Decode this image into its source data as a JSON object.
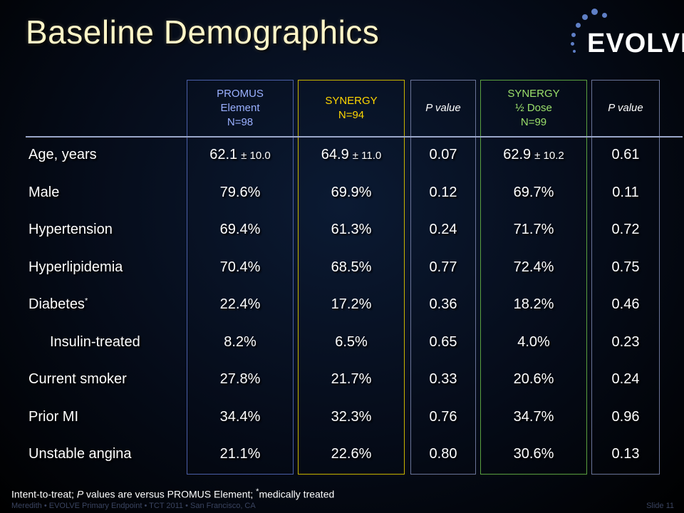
{
  "title": "Baseline Demographics",
  "logo": {
    "text": "EVOLVE"
  },
  "columns": [
    {
      "lines": [
        "PROMUS",
        "Element",
        "N=98"
      ],
      "color": "#9ab0ff"
    },
    {
      "lines": [
        "SYNERGY",
        "N=94"
      ],
      "color": "#ffd700"
    },
    {
      "lines": [
        "P value"
      ],
      "color": "#ffffff"
    },
    {
      "lines": [
        "SYNERGY",
        "½ Dose",
        "N=99"
      ],
      "color": "#9be06b"
    },
    {
      "lines": [
        "P value"
      ],
      "color": "#ffffff"
    }
  ],
  "rows": [
    {
      "label": "Age, years",
      "values": [
        "62.1",
        "64.9",
        "0.07",
        "62.9",
        "0.61"
      ],
      "sd": [
        "± 10.0",
        "± 11.0",
        "",
        "± 10.2",
        ""
      ]
    },
    {
      "label": "Male",
      "values": [
        "79.6%",
        "69.9%",
        "0.12",
        "69.7%",
        "0.11"
      ]
    },
    {
      "label": "Hypertension",
      "values": [
        "69.4%",
        "61.3%",
        "0.24",
        "71.7%",
        "0.72"
      ]
    },
    {
      "label": "Hyperlipidemia",
      "values": [
        "70.4%",
        "68.5%",
        "0.77",
        "72.4%",
        "0.75"
      ]
    },
    {
      "label": "Diabetes",
      "superscript": "*",
      "values": [
        "22.4%",
        "17.2%",
        "0.36",
        "18.2%",
        "0.46"
      ]
    },
    {
      "label": "Insulin-treated",
      "values": [
        "8.2%",
        "6.5%",
        "0.65",
        "4.0%",
        "0.23"
      ]
    },
    {
      "label": "Current smoker",
      "values": [
        "27.8%",
        "21.7%",
        "0.33",
        "20.6%",
        "0.24"
      ]
    },
    {
      "label": "Prior MI",
      "values": [
        "34.4%",
        "32.3%",
        "0.76",
        "34.7%",
        "0.96"
      ]
    },
    {
      "label": "Unstable angina",
      "values": [
        "21.1%",
        "22.6%",
        "0.80",
        "30.6%",
        "0.13"
      ]
    }
  ],
  "footnote": {
    "part1": "Intent-to-treat; ",
    "italic": "P",
    "part2": " values are versus PROMUS Element; ",
    "sup": "*",
    "part3": "medically treated"
  },
  "footer": {
    "left": "Meredith • EVOLVE Primary Endpoint • TCT 2011 • San Francisco, CA",
    "right": "Slide 11"
  }
}
